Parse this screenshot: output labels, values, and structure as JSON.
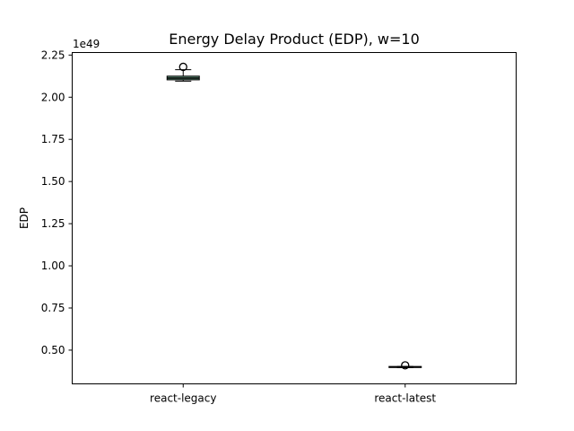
{
  "chart_data": {
    "type": "box",
    "title": "Energy Delay Product (EDP), w=10",
    "xlabel": "",
    "ylabel": "EDP",
    "offset_label": "1e49",
    "scale": 1e+49,
    "ylim": [
      0.3,
      2.265
    ],
    "yticks": [
      0.5,
      0.75,
      1.0,
      1.25,
      1.5,
      1.75,
      2.0,
      2.25
    ],
    "ytick_labels": [
      "0.50",
      "0.75",
      "1.00",
      "1.25",
      "1.50",
      "1.75",
      "2.00",
      "2.25"
    ],
    "categories": [
      "react-legacy",
      "react-latest"
    ],
    "boxes": [
      {
        "name": "react-legacy",
        "whisker_low": 2.095,
        "q1": 2.103,
        "median": 2.113,
        "q3": 2.125,
        "whisker_high": 2.163,
        "outliers": [
          2.18
        ],
        "box_color": "#5f8f7a"
      },
      {
        "name": "react-latest",
        "whisker_low": 0.396,
        "q1": 0.398,
        "median": 0.4,
        "q3": 0.402,
        "whisker_high": 0.404,
        "outliers": [
          0.41
        ],
        "box_color": "#5f8f7a"
      }
    ],
    "grid": false,
    "legend": "none"
  }
}
